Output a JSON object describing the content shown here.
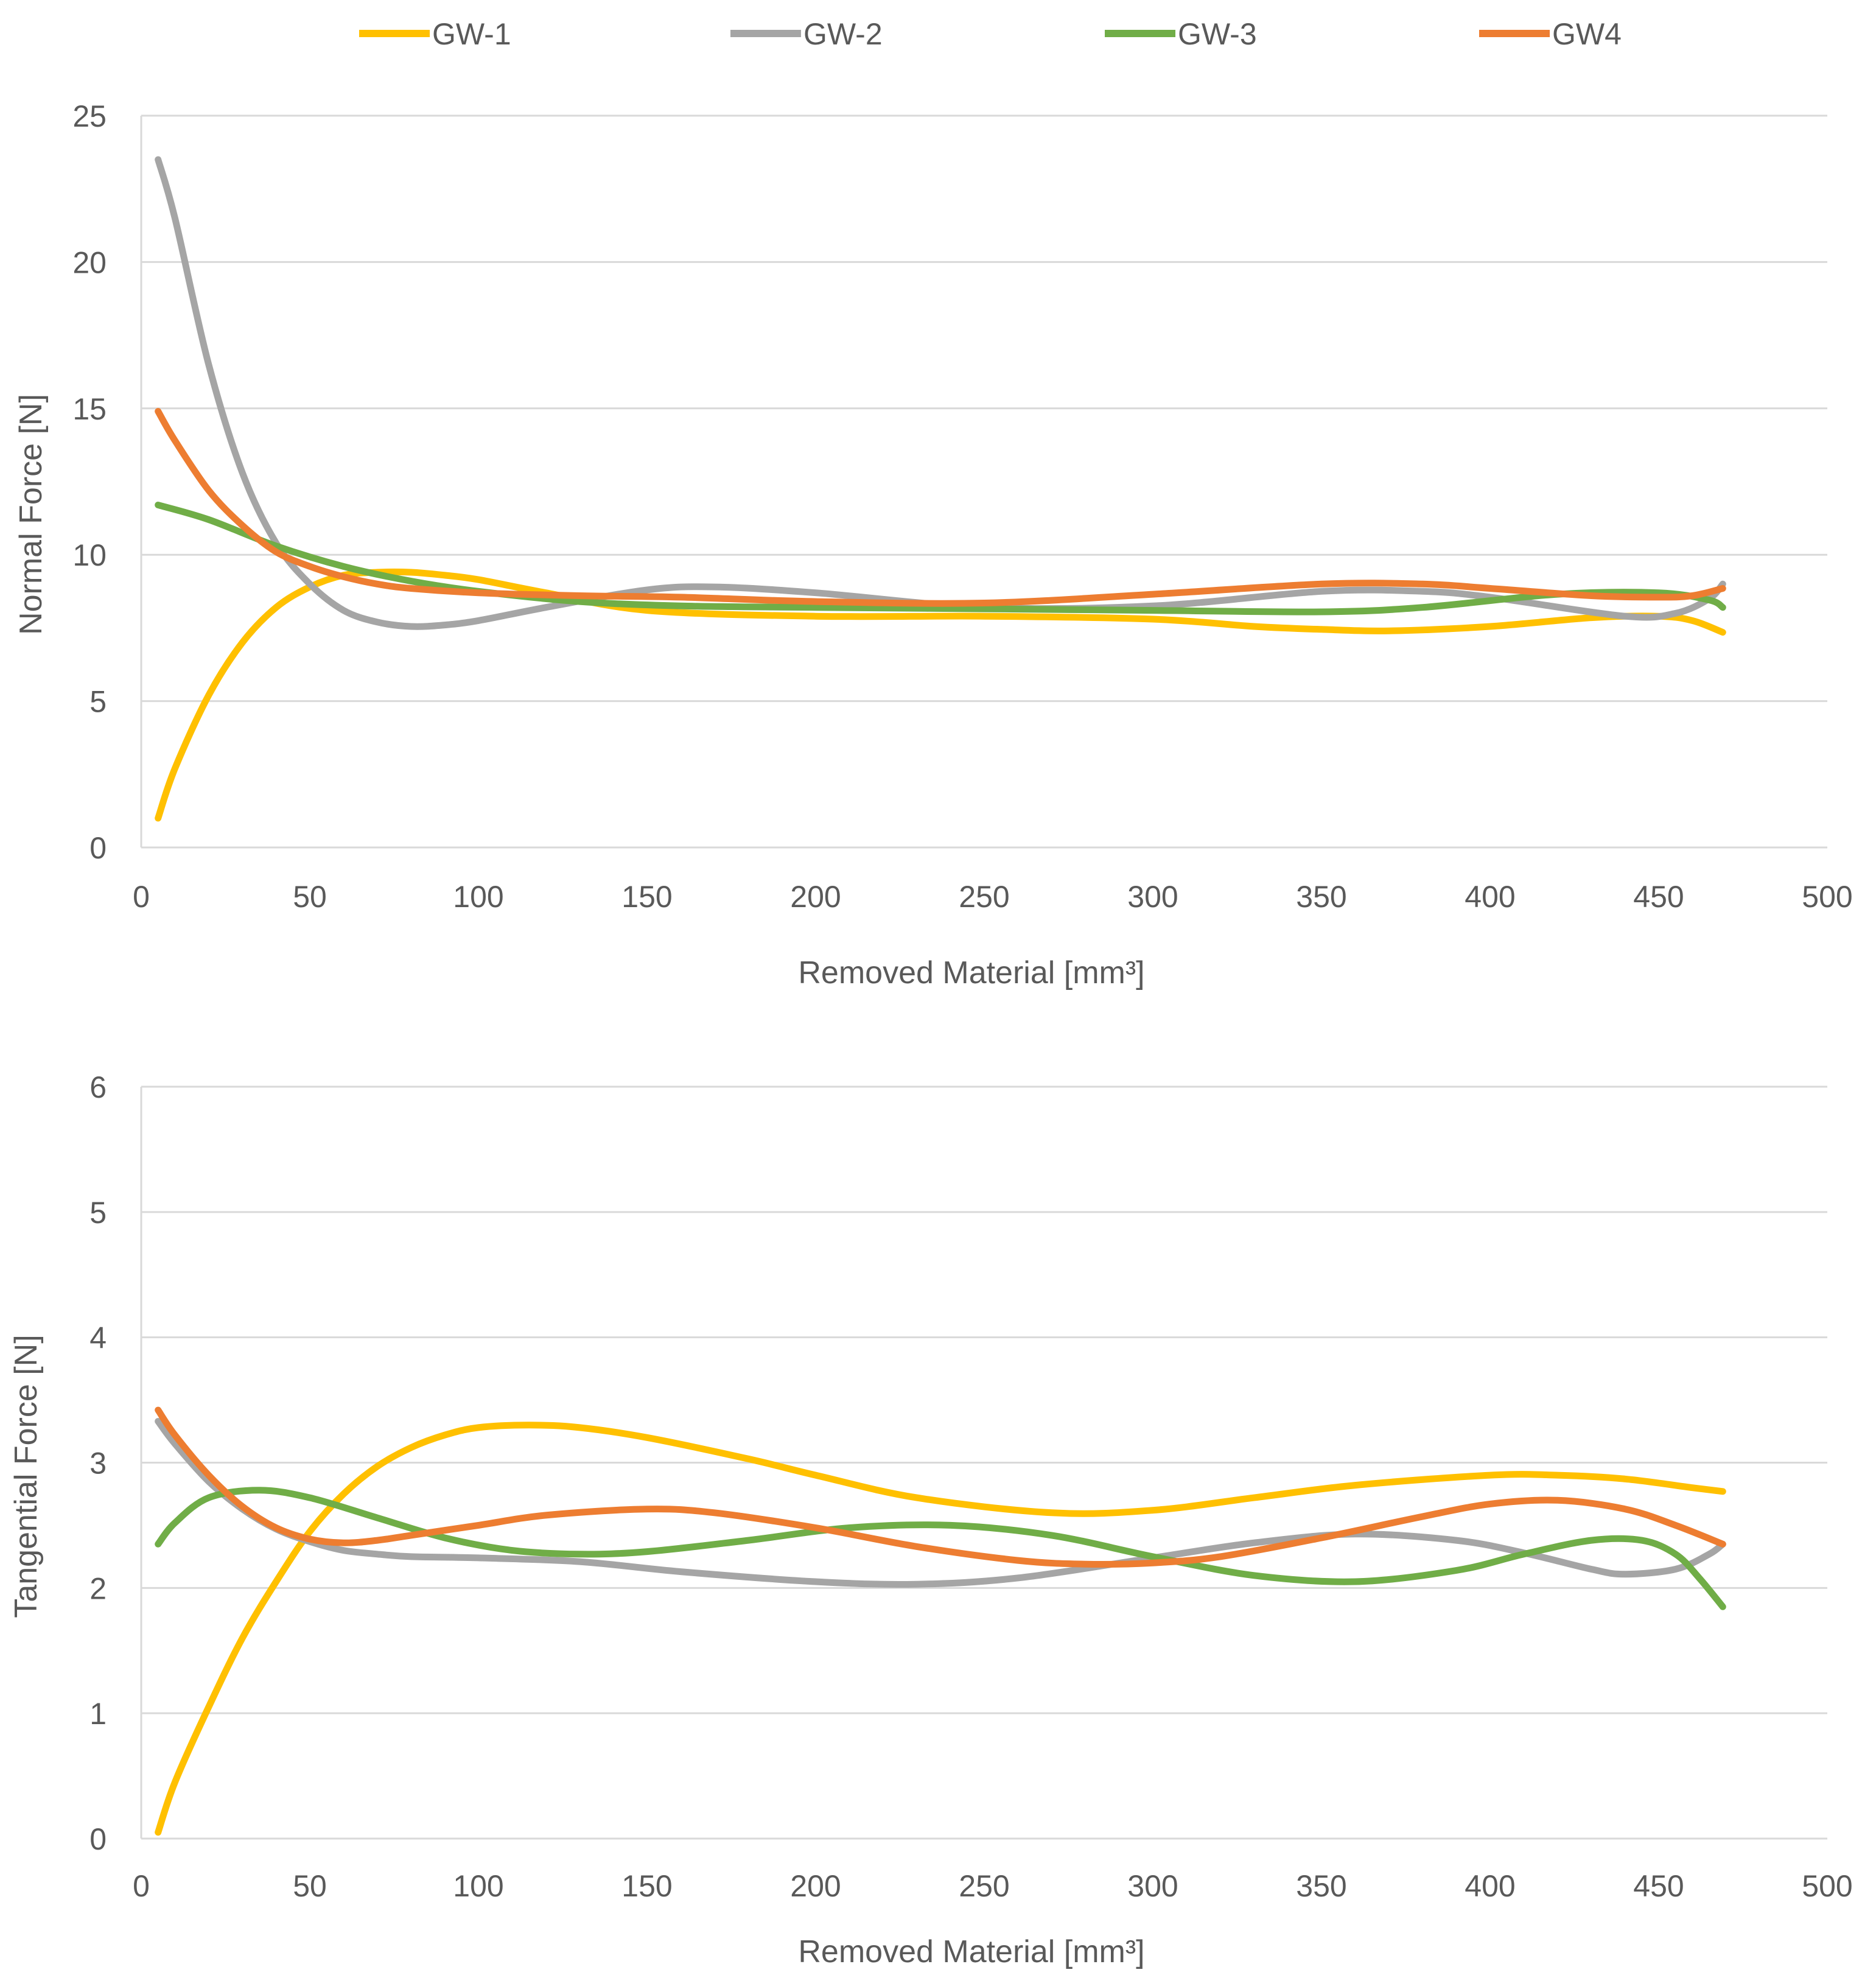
{
  "legend": [
    {
      "label": "GW-1",
      "color": "#FFC000"
    },
    {
      "label": "GW-2",
      "color": "#A5A5A5"
    },
    {
      "label": "GW-3",
      "color": "#70AD47"
    },
    {
      "label": "GW4",
      "color": "#ED7D31"
    }
  ],
  "chart_data": [
    {
      "type": "line",
      "title": "",
      "xlabel": "Removed Material [mm³]",
      "ylabel": "Normal Force [N]",
      "xlim": [
        0,
        500
      ],
      "ylim": [
        0,
        25
      ],
      "xticks": [
        "0",
        "50",
        "100",
        "150",
        "200",
        "250",
        "300",
        "350",
        "400",
        "450",
        "500"
      ],
      "yticks": [
        "0",
        "5",
        "10",
        "15",
        "20",
        "25"
      ],
      "grid": true,
      "series": [
        {
          "name": "GW-1",
          "color": "#FFC000",
          "x": [
            5,
            10,
            20,
            30,
            40,
            50,
            60,
            70,
            80,
            90,
            100,
            120,
            150,
            200,
            250,
            300,
            330,
            350,
            370,
            400,
            430,
            450,
            460,
            469
          ],
          "y": [
            1,
            2.7,
            5.2,
            7.0,
            8.2,
            8.9,
            9.3,
            9.4,
            9.4,
            9.3,
            9.15,
            8.7,
            8.1,
            7.9,
            7.9,
            7.8,
            7.55,
            7.45,
            7.4,
            7.55,
            7.85,
            7.9,
            7.75,
            7.35
          ]
        },
        {
          "name": "GW-2",
          "color": "#A5A5A5",
          "x": [
            5,
            10,
            20,
            30,
            40,
            50,
            60,
            70,
            80,
            90,
            100,
            120,
            150,
            170,
            200,
            250,
            300,
            350,
            380,
            400,
            440,
            455,
            465,
            469
          ],
          "y": [
            23.5,
            21.5,
            16.5,
            12.8,
            10.4,
            9.0,
            8.1,
            7.7,
            7.55,
            7.6,
            7.75,
            8.2,
            8.8,
            8.9,
            8.7,
            8.2,
            8.25,
            8.75,
            8.75,
            8.55,
            7.9,
            8.0,
            8.5,
            9.0
          ]
        },
        {
          "name": "GW-3",
          "color": "#70AD47",
          "x": [
            5,
            20,
            40,
            60,
            80,
            100,
            130,
            160,
            200,
            250,
            300,
            350,
            380,
            420,
            450,
            465,
            469
          ],
          "y": [
            11.7,
            11.2,
            10.3,
            9.6,
            9.1,
            8.75,
            8.4,
            8.25,
            8.2,
            8.15,
            8.1,
            8.05,
            8.2,
            8.65,
            8.7,
            8.45,
            8.2
          ]
        },
        {
          "name": "GW4",
          "color": "#ED7D31",
          "x": [
            5,
            10,
            20,
            30,
            40,
            50,
            60,
            70,
            80,
            100,
            130,
            160,
            200,
            250,
            300,
            350,
            380,
            400,
            430,
            450,
            460,
            469
          ],
          "y": [
            14.9,
            13.9,
            12.2,
            11.0,
            10.1,
            9.6,
            9.25,
            9.0,
            8.85,
            8.7,
            8.6,
            8.55,
            8.4,
            8.35,
            8.65,
            9.0,
            9.0,
            8.85,
            8.6,
            8.55,
            8.6,
            8.85
          ]
        }
      ]
    },
    {
      "type": "line",
      "title": "",
      "xlabel": "Removed Material [mm³]",
      "ylabel": "Tangential Force [N]",
      "xlim": [
        0,
        500
      ],
      "ylim": [
        0,
        6
      ],
      "xticks": [
        "0",
        "50",
        "100",
        "150",
        "200",
        "250",
        "300",
        "350",
        "400",
        "450",
        "500"
      ],
      "yticks": [
        "0",
        "1",
        "2",
        "3",
        "4",
        "5",
        "6"
      ],
      "grid": true,
      "series": [
        {
          "name": "GW-1",
          "color": "#FFC000",
          "x": [
            5,
            10,
            20,
            30,
            40,
            50,
            60,
            70,
            80,
            90,
            100,
            115,
            130,
            150,
            180,
            200,
            230,
            270,
            300,
            330,
            360,
            400,
            420,
            440,
            460,
            469
          ],
          "y": [
            0.05,
            0.45,
            1.05,
            1.6,
            2.05,
            2.45,
            2.75,
            2.97,
            3.12,
            3.22,
            3.28,
            3.3,
            3.28,
            3.2,
            3.03,
            2.9,
            2.72,
            2.6,
            2.62,
            2.72,
            2.82,
            2.9,
            2.9,
            2.87,
            2.8,
            2.77
          ]
        },
        {
          "name": "GW-2",
          "color": "#A5A5A5",
          "x": [
            5,
            10,
            20,
            30,
            40,
            50,
            60,
            70,
            80,
            100,
            130,
            160,
            200,
            230,
            260,
            300,
            330,
            360,
            390,
            410,
            430,
            440,
            455,
            465,
            469
          ],
          "y": [
            3.33,
            3.15,
            2.85,
            2.63,
            2.47,
            2.37,
            2.3,
            2.27,
            2.25,
            2.24,
            2.21,
            2.13,
            2.05,
            2.03,
            2.08,
            2.24,
            2.36,
            2.43,
            2.38,
            2.28,
            2.15,
            2.11,
            2.15,
            2.27,
            2.35
          ]
        },
        {
          "name": "GW-3",
          "color": "#70AD47",
          "x": [
            5,
            10,
            20,
            35,
            50,
            70,
            90,
            110,
            130,
            150,
            180,
            210,
            240,
            270,
            300,
            330,
            360,
            390,
            410,
            430,
            445,
            455,
            462,
            469
          ],
          "y": [
            2.35,
            2.52,
            2.72,
            2.78,
            2.72,
            2.56,
            2.4,
            2.3,
            2.27,
            2.29,
            2.38,
            2.48,
            2.5,
            2.42,
            2.25,
            2.1,
            2.05,
            2.14,
            2.27,
            2.38,
            2.38,
            2.27,
            2.08,
            1.85
          ]
        },
        {
          "name": "GW4",
          "color": "#ED7D31",
          "x": [
            5,
            10,
            20,
            30,
            40,
            50,
            60,
            70,
            80,
            100,
            120,
            150,
            170,
            200,
            230,
            260,
            280,
            300,
            320,
            350,
            380,
            400,
            420,
            440,
            455,
            469
          ],
          "y": [
            3.42,
            3.22,
            2.9,
            2.65,
            2.48,
            2.39,
            2.36,
            2.38,
            2.42,
            2.5,
            2.58,
            2.63,
            2.6,
            2.48,
            2.33,
            2.22,
            2.19,
            2.2,
            2.25,
            2.4,
            2.57,
            2.67,
            2.7,
            2.63,
            2.5,
            2.35
          ]
        }
      ]
    }
  ]
}
